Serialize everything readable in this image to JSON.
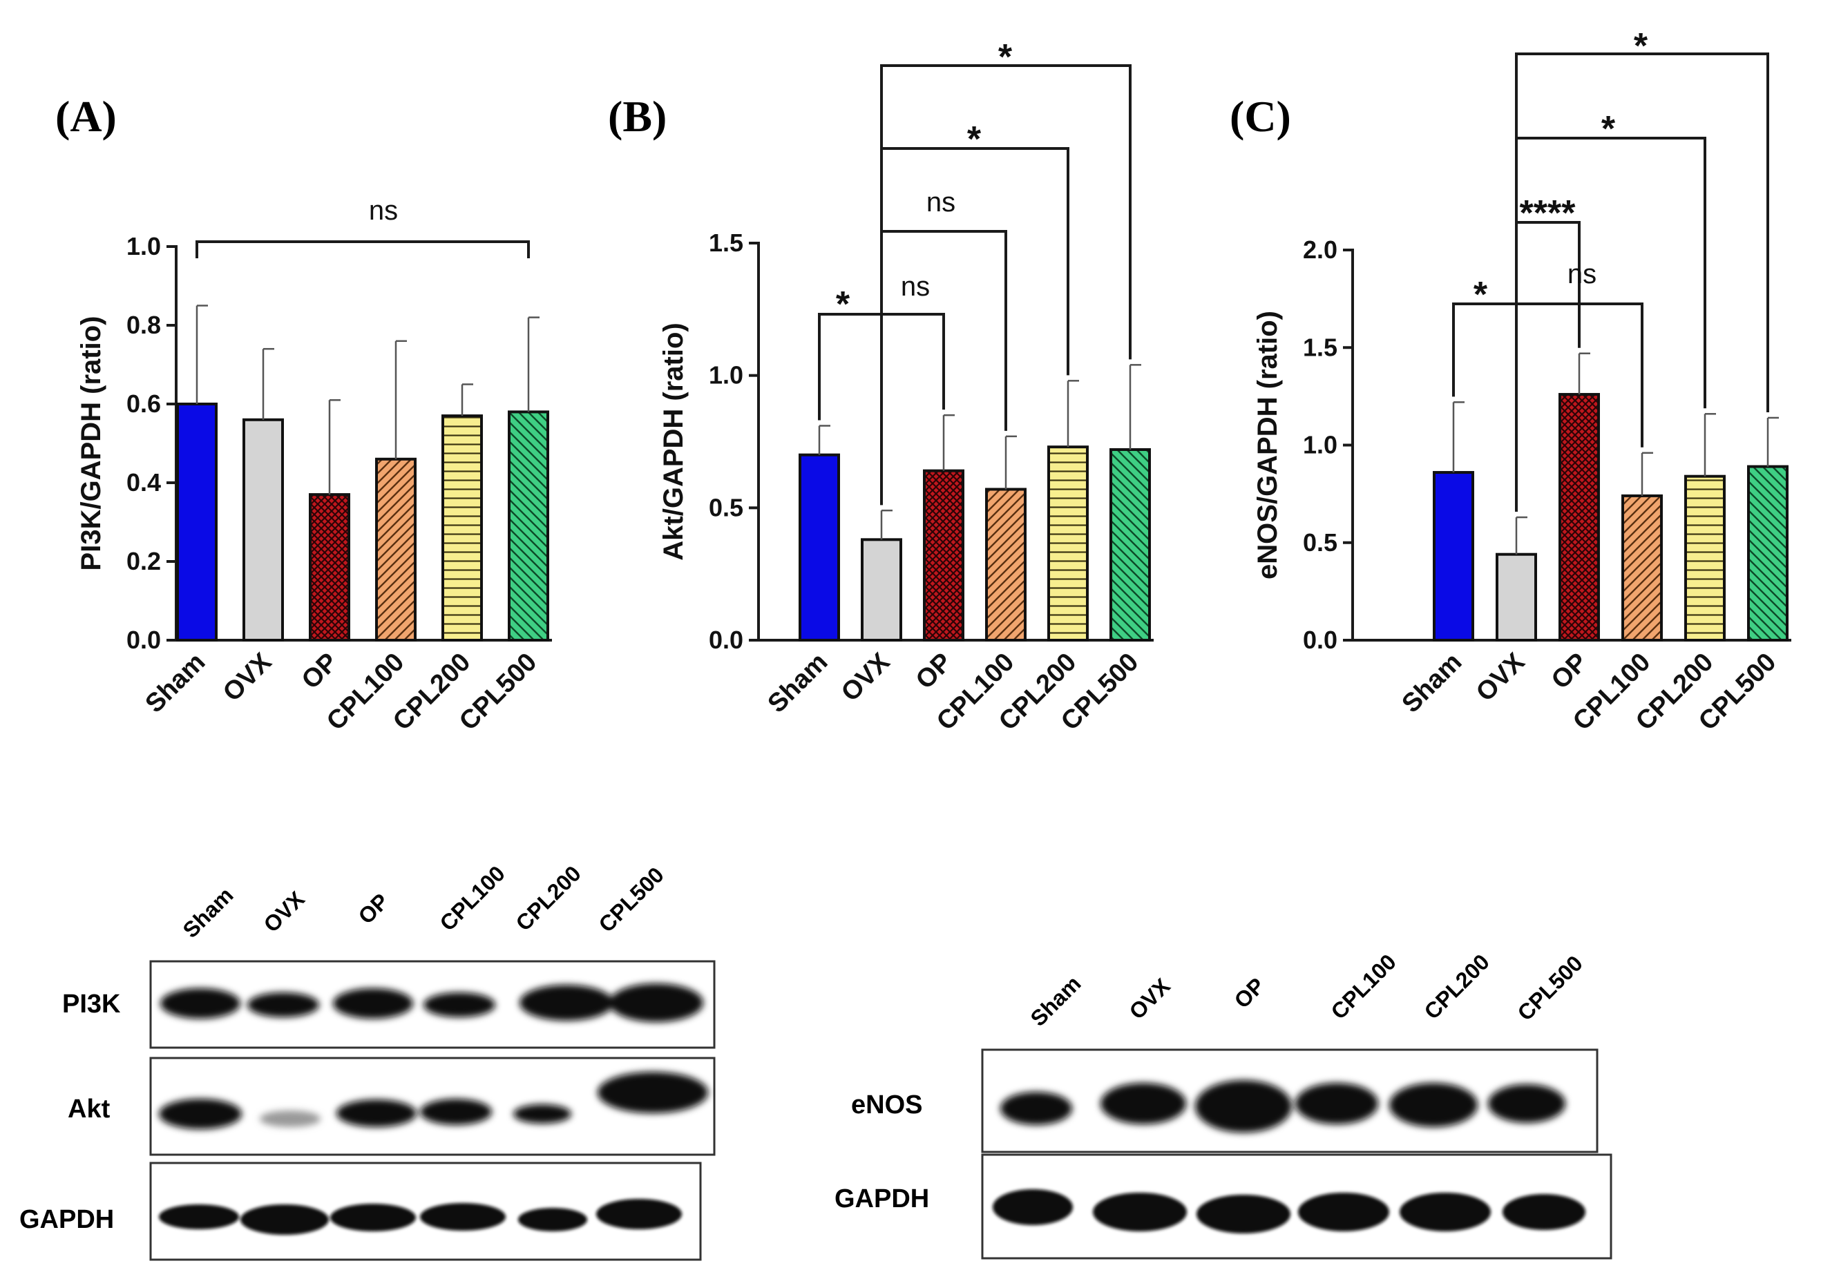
{
  "figure": {
    "panels": [
      "(A)",
      "(B)",
      "(C)"
    ]
  },
  "colors": {
    "Sham": "#0a0ae6",
    "OVX": "#d4d4d4",
    "OP": "#c0171d",
    "CPL100": "#f1a56e",
    "CPL200": "#f7ee8f",
    "CPL500": "#3fcf84"
  },
  "chart_data": [
    {
      "type": "bar",
      "panel": "(A)",
      "categories": [
        "Sham",
        "OVX",
        "OP",
        "CPL100",
        "CPL200",
        "CPL500"
      ],
      "values": [
        0.6,
        0.56,
        0.37,
        0.46,
        0.57,
        0.58
      ],
      "errors": [
        0.25,
        0.18,
        0.24,
        0.3,
        0.08,
        0.24
      ],
      "ylabel": "PI3K/GAPDH (ratio)",
      "ylim": [
        0,
        1.0
      ],
      "yticks": [
        "0.0",
        "0.2",
        "0.4",
        "0.6",
        "0.8",
        "1.0"
      ],
      "comparisons": [
        {
          "from": "Sham",
          "to": "CPL500",
          "label": "ns"
        }
      ]
    },
    {
      "type": "bar",
      "panel": "(B)",
      "categories": [
        "Sham",
        "OVX",
        "OP",
        "CPL100",
        "CPL200",
        "CPL500"
      ],
      "values": [
        0.7,
        0.38,
        0.64,
        0.57,
        0.73,
        0.72
      ],
      "errors": [
        0.11,
        0.11,
        0.21,
        0.2,
        0.25,
        0.32
      ],
      "ylabel": "Akt/GAPDH (ratio)",
      "ylim": [
        0,
        1.5
      ],
      "yticks": [
        "0.0",
        "0.5",
        "1.0",
        "1.5"
      ],
      "comparisons": [
        {
          "from": "Sham",
          "to": "OVX",
          "label": "*"
        },
        {
          "from": "OVX",
          "to": "OP",
          "label": "ns"
        },
        {
          "from": "OVX",
          "to": "CPL100",
          "label": "ns"
        },
        {
          "from": "OVX",
          "to": "CPL200",
          "label": "*"
        },
        {
          "from": "OVX",
          "to": "CPL500",
          "label": "*"
        }
      ]
    },
    {
      "type": "bar",
      "panel": "(C)",
      "categories": [
        "Sham",
        "OVX",
        "OP",
        "CPL100",
        "CPL200",
        "CPL500"
      ],
      "values": [
        0.86,
        0.44,
        1.26,
        0.74,
        0.84,
        0.89
      ],
      "errors": [
        0.36,
        0.19,
        0.21,
        0.22,
        0.32,
        0.25
      ],
      "ylabel": "eNOS/GAPDH (ratio)",
      "ylim": [
        0,
        2.0
      ],
      "yticks": [
        "0.0",
        "0.5",
        "1.0",
        "1.5",
        "2.0"
      ],
      "comparisons": [
        {
          "from": "Sham",
          "to": "OVX",
          "label": "*"
        },
        {
          "from": "OVX",
          "to": "OP",
          "label": "****"
        },
        {
          "from": "OVX",
          "to": "CPL100",
          "label": "ns"
        },
        {
          "from": "OVX",
          "to": "CPL200",
          "label": "*"
        },
        {
          "from": "OVX",
          "to": "CPL500",
          "label": "*"
        }
      ]
    }
  ],
  "blots": [
    {
      "lanes": [
        "Sham",
        "OVX",
        "OP",
        "CPL100",
        "CPL200",
        "CPL500"
      ],
      "rows": [
        "PI3K",
        "Akt",
        "GAPDH"
      ]
    },
    {
      "lanes": [
        "Sham",
        "OVX",
        "OP",
        "CPL100",
        "CPL200",
        "CPL500"
      ],
      "rows": [
        "eNOS",
        "GAPDH"
      ]
    }
  ]
}
